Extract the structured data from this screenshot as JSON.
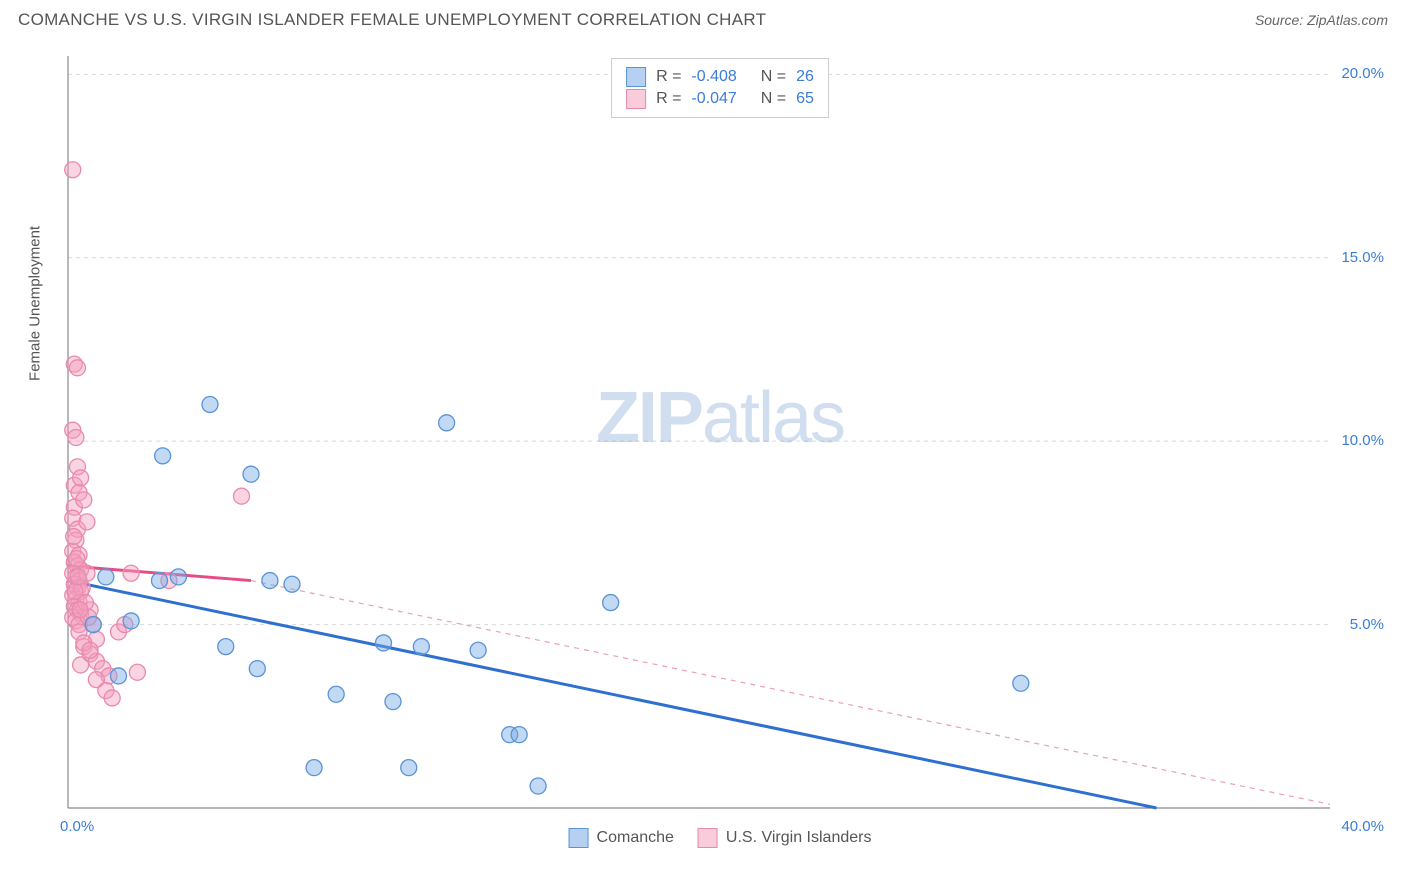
{
  "title": "COMANCHE VS U.S. VIRGIN ISLANDER FEMALE UNEMPLOYMENT CORRELATION CHART",
  "source": "Source: ZipAtlas.com",
  "y_axis_label": "Female Unemployment",
  "watermark_bold": "ZIP",
  "watermark_light": "atlas",
  "chart": {
    "type": "scatter",
    "background_color": "#ffffff",
    "grid_color": "#d9d9d9",
    "grid_dash": "4,4",
    "axis_color": "#888888",
    "xlim": [
      0,
      40
    ],
    "ylim": [
      0,
      20.5
    ],
    "xticks": [
      0,
      40
    ],
    "xtick_labels": [
      "0.0%",
      "40.0%"
    ],
    "yticks": [
      5,
      10,
      15,
      20
    ],
    "ytick_labels": [
      "5.0%",
      "10.0%",
      "15.0%",
      "20.0%"
    ],
    "tick_label_color": "#3b7dd8",
    "tick_fontsize": 15,
    "series": [
      {
        "name": "Comanche",
        "color_fill": "rgba(120,170,230,0.45)",
        "color_stroke": "#5a93d6",
        "marker_radius": 8,
        "R": "-0.408",
        "N": "26",
        "trend": {
          "x1": 0,
          "y1": 6.2,
          "x2": 34.5,
          "y2": 0,
          "color": "#2f6fd0",
          "width": 3,
          "dash": "none"
        },
        "points": [
          [
            1.2,
            6.3
          ],
          [
            2.0,
            5.1
          ],
          [
            3.0,
            9.6
          ],
          [
            4.5,
            11.0
          ],
          [
            5.0,
            4.4
          ],
          [
            5.8,
            9.1
          ],
          [
            6.0,
            3.8
          ],
          [
            6.4,
            6.2
          ],
          [
            7.1,
            6.1
          ],
          [
            7.8,
            1.1
          ],
          [
            8.5,
            3.1
          ],
          [
            10.0,
            4.5
          ],
          [
            10.3,
            2.9
          ],
          [
            10.8,
            1.1
          ],
          [
            11.2,
            4.4
          ],
          [
            12.0,
            10.5
          ],
          [
            13.0,
            4.3
          ],
          [
            14.0,
            2.0
          ],
          [
            14.3,
            2.0
          ],
          [
            14.9,
            0.6
          ],
          [
            17.2,
            5.6
          ],
          [
            30.2,
            3.4
          ],
          [
            1.6,
            3.6
          ],
          [
            2.9,
            6.2
          ],
          [
            0.8,
            5.0
          ],
          [
            3.5,
            6.3
          ]
        ]
      },
      {
        "name": "U.S. Virgin Islanders",
        "color_fill": "rgba(245,160,190,0.45)",
        "color_stroke": "#e88aad",
        "marker_radius": 8,
        "R": "-0.047",
        "N": "65",
        "trend_solid": {
          "x1": 0,
          "y1": 6.6,
          "x2": 5.8,
          "y2": 6.2,
          "color": "#e94b86",
          "width": 3
        },
        "trend_dashed": {
          "x1": 5.8,
          "y1": 6.2,
          "x2": 40,
          "y2": 0.1,
          "color": "#e9a0b8",
          "width": 1.2,
          "dash": "5,5"
        },
        "points": [
          [
            0.15,
            17.4
          ],
          [
            0.2,
            12.1
          ],
          [
            0.3,
            12.0
          ],
          [
            0.15,
            10.3
          ],
          [
            0.25,
            10.1
          ],
          [
            0.3,
            9.3
          ],
          [
            0.2,
            8.8
          ],
          [
            0.35,
            8.6
          ],
          [
            0.2,
            8.2
          ],
          [
            0.15,
            7.9
          ],
          [
            0.3,
            7.6
          ],
          [
            0.25,
            7.3
          ],
          [
            0.15,
            7.0
          ],
          [
            0.35,
            6.9
          ],
          [
            0.2,
            6.7
          ],
          [
            0.3,
            6.6
          ],
          [
            0.4,
            6.5
          ],
          [
            0.15,
            6.4
          ],
          [
            0.25,
            6.3
          ],
          [
            0.35,
            6.2
          ],
          [
            0.2,
            6.1
          ],
          [
            0.3,
            6.0
          ],
          [
            0.4,
            5.9
          ],
          [
            0.15,
            5.8
          ],
          [
            0.25,
            5.7
          ],
          [
            0.35,
            5.6
          ],
          [
            0.2,
            5.5
          ],
          [
            0.3,
            5.4
          ],
          [
            0.4,
            5.3
          ],
          [
            0.15,
            5.2
          ],
          [
            0.25,
            5.1
          ],
          [
            0.35,
            5.0
          ],
          [
            0.6,
            6.4
          ],
          [
            0.7,
            5.4
          ],
          [
            0.8,
            5.0
          ],
          [
            0.9,
            4.6
          ],
          [
            0.5,
            4.4
          ],
          [
            0.7,
            4.2
          ],
          [
            0.9,
            4.0
          ],
          [
            0.4,
            3.9
          ],
          [
            1.1,
            3.8
          ],
          [
            1.3,
            3.6
          ],
          [
            1.6,
            4.8
          ],
          [
            1.8,
            5.0
          ],
          [
            2.2,
            3.7
          ],
          [
            2.0,
            6.4
          ],
          [
            3.2,
            6.2
          ],
          [
            0.4,
            9.0
          ],
          [
            0.5,
            8.4
          ],
          [
            0.6,
            7.8
          ],
          [
            0.45,
            6.0
          ],
          [
            0.55,
            5.6
          ],
          [
            0.65,
            5.2
          ],
          [
            0.35,
            4.8
          ],
          [
            0.5,
            4.5
          ],
          [
            0.7,
            4.3
          ],
          [
            0.9,
            3.5
          ],
          [
            1.2,
            3.2
          ],
          [
            1.4,
            3.0
          ],
          [
            5.5,
            8.5
          ],
          [
            0.28,
            6.8
          ],
          [
            0.22,
            5.9
          ],
          [
            0.32,
            6.3
          ],
          [
            0.18,
            7.4
          ],
          [
            0.38,
            5.4
          ]
        ]
      }
    ],
    "legend_swatch_size": 20,
    "legend": {
      "top_border": "#cccccc",
      "items": [
        {
          "swatch_fill": "rgba(120,170,230,0.55)",
          "swatch_stroke": "#5a93d6",
          "r_label": "R =",
          "r_val": "-0.408",
          "n_label": "N =",
          "n_val": "26"
        },
        {
          "swatch_fill": "rgba(245,160,190,0.55)",
          "swatch_stroke": "#e88aad",
          "r_label": "R =",
          "r_val": "-0.047",
          "n_label": "N =",
          "n_val": "65"
        }
      ],
      "bottom": [
        {
          "swatch_fill": "rgba(120,170,230,0.55)",
          "swatch_stroke": "#5a93d6",
          "label": "Comanche"
        },
        {
          "swatch_fill": "rgba(245,160,190,0.55)",
          "swatch_stroke": "#e88aad",
          "label": "U.S. Virgin Islanders"
        }
      ]
    }
  }
}
